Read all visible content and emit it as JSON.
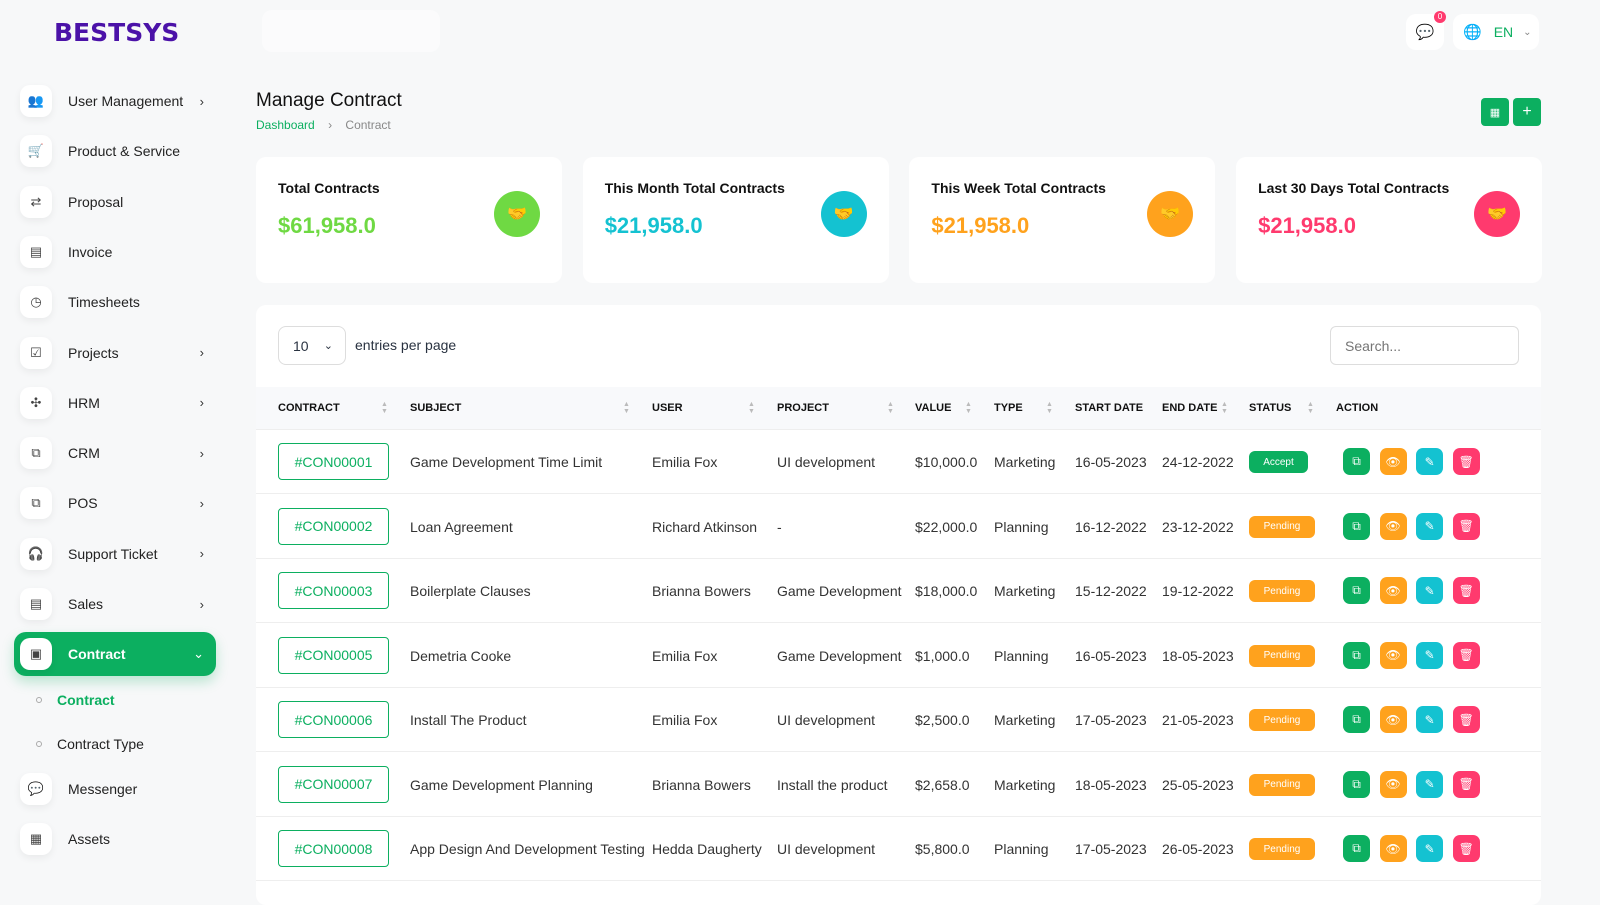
{
  "brand": "BESTSYS",
  "header": {
    "notification_count": "0",
    "language": "EN"
  },
  "sidebar": {
    "items": [
      {
        "label": "User Management",
        "icon": "users-icon",
        "glyph": "👥",
        "chev": true
      },
      {
        "label": "Product & Service",
        "icon": "cart-icon",
        "glyph": "🛒",
        "chev": false
      },
      {
        "label": "Proposal",
        "icon": "proposal-icon",
        "glyph": "⇄",
        "chev": false
      },
      {
        "label": "Invoice",
        "icon": "invoice-icon",
        "glyph": "▤",
        "chev": false
      },
      {
        "label": "Timesheets",
        "icon": "clock-icon",
        "glyph": "◷",
        "chev": false
      },
      {
        "label": "Projects",
        "icon": "checkbox-icon",
        "glyph": "☑",
        "chev": true
      },
      {
        "label": "HRM",
        "icon": "hrm-icon",
        "glyph": "✣",
        "chev": true
      },
      {
        "label": "CRM",
        "icon": "crm-icon",
        "glyph": "⧉",
        "chev": true
      },
      {
        "label": "POS",
        "icon": "pos-icon",
        "glyph": "⧉",
        "chev": true
      },
      {
        "label": "Support Ticket",
        "icon": "headphones-icon",
        "glyph": "🎧",
        "chev": true
      },
      {
        "label": "Sales",
        "icon": "sales-icon",
        "glyph": "▤",
        "chev": true
      },
      {
        "label": "Contract",
        "icon": "contract-icon",
        "glyph": "▣",
        "chev": true,
        "active": true
      }
    ],
    "subitems": [
      {
        "label": "Contract",
        "active": true
      },
      {
        "label": "Contract Type"
      }
    ],
    "items_after": [
      {
        "label": "Messenger",
        "icon": "chat-icon",
        "glyph": "💬"
      },
      {
        "label": "Assets",
        "icon": "calculator-icon",
        "glyph": "▦"
      }
    ]
  },
  "page": {
    "title": "Manage Contract",
    "breadcrumb": [
      "Dashboard",
      "Contract"
    ]
  },
  "cards": [
    {
      "title": "Total Contracts",
      "value": "$61,958.0",
      "color": "#6fd943"
    },
    {
      "title": "This Month Total Contracts",
      "value": "$21,958.0",
      "color": "#14c2d1"
    },
    {
      "title": "This Week Total Contracts",
      "value": "$21,958.0",
      "color": "#ffa21d"
    },
    {
      "title": "Last 30 Days Total Contracts",
      "value": "$21,958.0",
      "color": "#ff3a6e"
    }
  ],
  "table": {
    "page_size": "10",
    "entries_label": "entries per page",
    "search_placeholder": "Search...",
    "columns": [
      "CONTRACT",
      "SUBJECT",
      "USER",
      "PROJECT",
      "VALUE",
      "TYPE",
      "START DATE",
      "END DATE",
      "STATUS",
      "ACTION"
    ],
    "rows": [
      {
        "id": "#CON00001",
        "subject": "Game Development Time Limit",
        "user": "Emilia Fox",
        "project": "UI development",
        "value": "$10,000.0",
        "type": "Marketing",
        "start": "16-05-2023",
        "end": "24-12-2022",
        "status": "Accept"
      },
      {
        "id": "#CON00002",
        "subject": "Loan Agreement",
        "user": "Richard Atkinson",
        "project": "-",
        "value": "$22,000.0",
        "type": "Planning",
        "start": "16-12-2022",
        "end": "23-12-2022",
        "status": "Pending"
      },
      {
        "id": "#CON00003",
        "subject": "Boilerplate Clauses",
        "user": "Brianna Bowers",
        "project": "Game Development",
        "value": "$18,000.0",
        "type": "Marketing",
        "start": "15-12-2022",
        "end": "19-12-2022",
        "status": "Pending"
      },
      {
        "id": "#CON00005",
        "subject": "Demetria Cooke",
        "user": "Emilia Fox",
        "project": "Game Development",
        "value": "$1,000.0",
        "type": "Planning",
        "start": "16-05-2023",
        "end": "18-05-2023",
        "status": "Pending"
      },
      {
        "id": "#CON00006",
        "subject": "Install The Product",
        "user": "Emilia Fox",
        "project": "UI development",
        "value": "$2,500.0",
        "type": "Marketing",
        "start": "17-05-2023",
        "end": "21-05-2023",
        "status": "Pending"
      },
      {
        "id": "#CON00007",
        "subject": "Game Development Planning",
        "user": "Brianna Bowers",
        "project": "Install the product",
        "value": "$2,658.0",
        "type": "Marketing",
        "start": "18-05-2023",
        "end": "25-05-2023",
        "status": "Pending"
      },
      {
        "id": "#CON00008",
        "subject": "App Design And Development Testing",
        "user": "Hedda Daugherty",
        "project": "UI development",
        "value": "$5,800.0",
        "type": "Planning",
        "start": "17-05-2023",
        "end": "26-05-2023",
        "status": "Pending"
      }
    ]
  },
  "colors": {
    "primary": "#0caf60",
    "accept": "#0caf60",
    "pending": "#ffa21d",
    "copy": "#0caf60",
    "view": "#ffa21d",
    "edit": "#14c2d1",
    "delete": "#ff3a6e"
  }
}
